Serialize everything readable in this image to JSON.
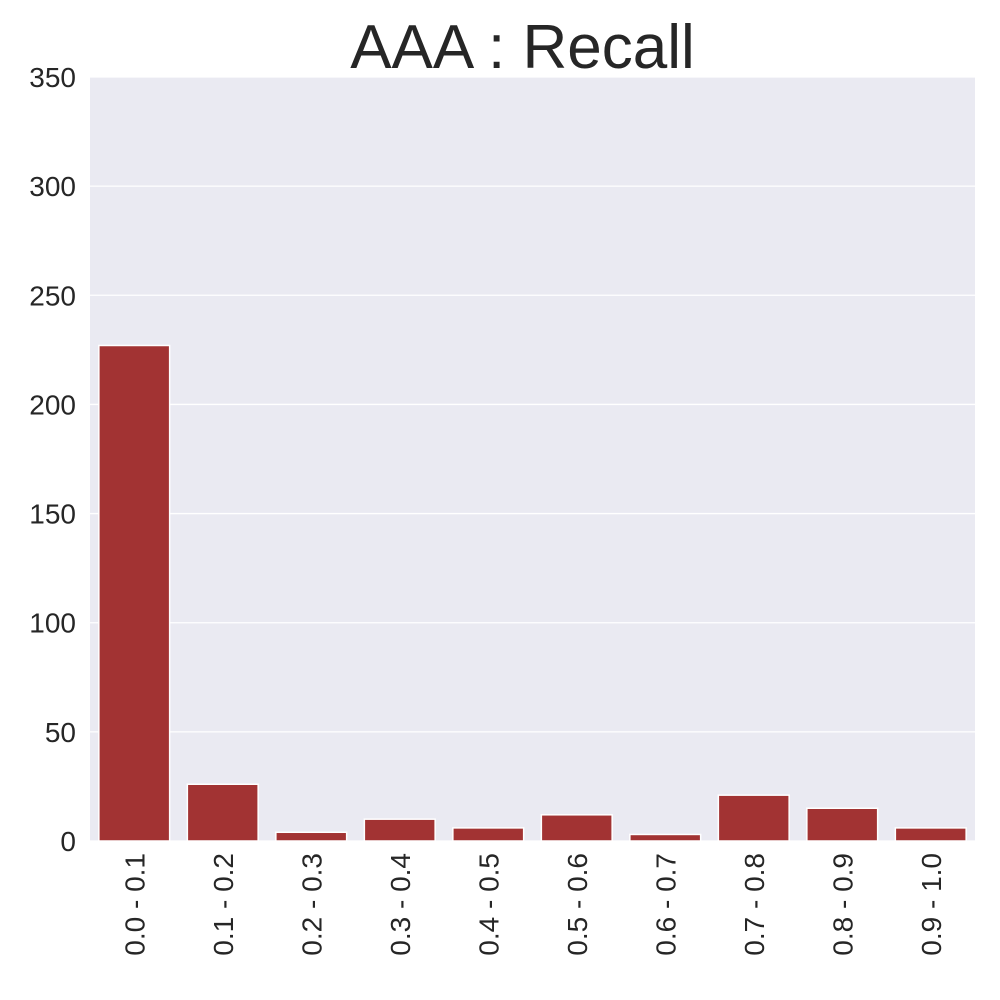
{
  "chart_data": {
    "type": "bar",
    "title": "AAA : Recall",
    "xlabel": "",
    "ylabel": "",
    "categories": [
      "0.0 - 0.1",
      "0.1 - 0.2",
      "0.2 - 0.3",
      "0.3 - 0.4",
      "0.4 - 0.5",
      "0.5 - 0.6",
      "0.6 - 0.7",
      "0.7 - 0.8",
      "0.8 - 0.9",
      "0.9 - 1.0"
    ],
    "values": [
      227,
      26,
      4,
      10,
      6,
      12,
      3,
      21,
      15,
      6
    ],
    "ylim": [
      0,
      350
    ],
    "yticks": [
      0,
      50,
      100,
      150,
      200,
      250,
      300,
      350
    ],
    "ytick_labels": [
      "0",
      "50",
      "100",
      "150",
      "200",
      "250",
      "300",
      "350"
    ],
    "grid": "horizontal",
    "bar_color": "#a23333",
    "plot_background": "#eaeaf2",
    "grid_color": "#ffffff"
  }
}
